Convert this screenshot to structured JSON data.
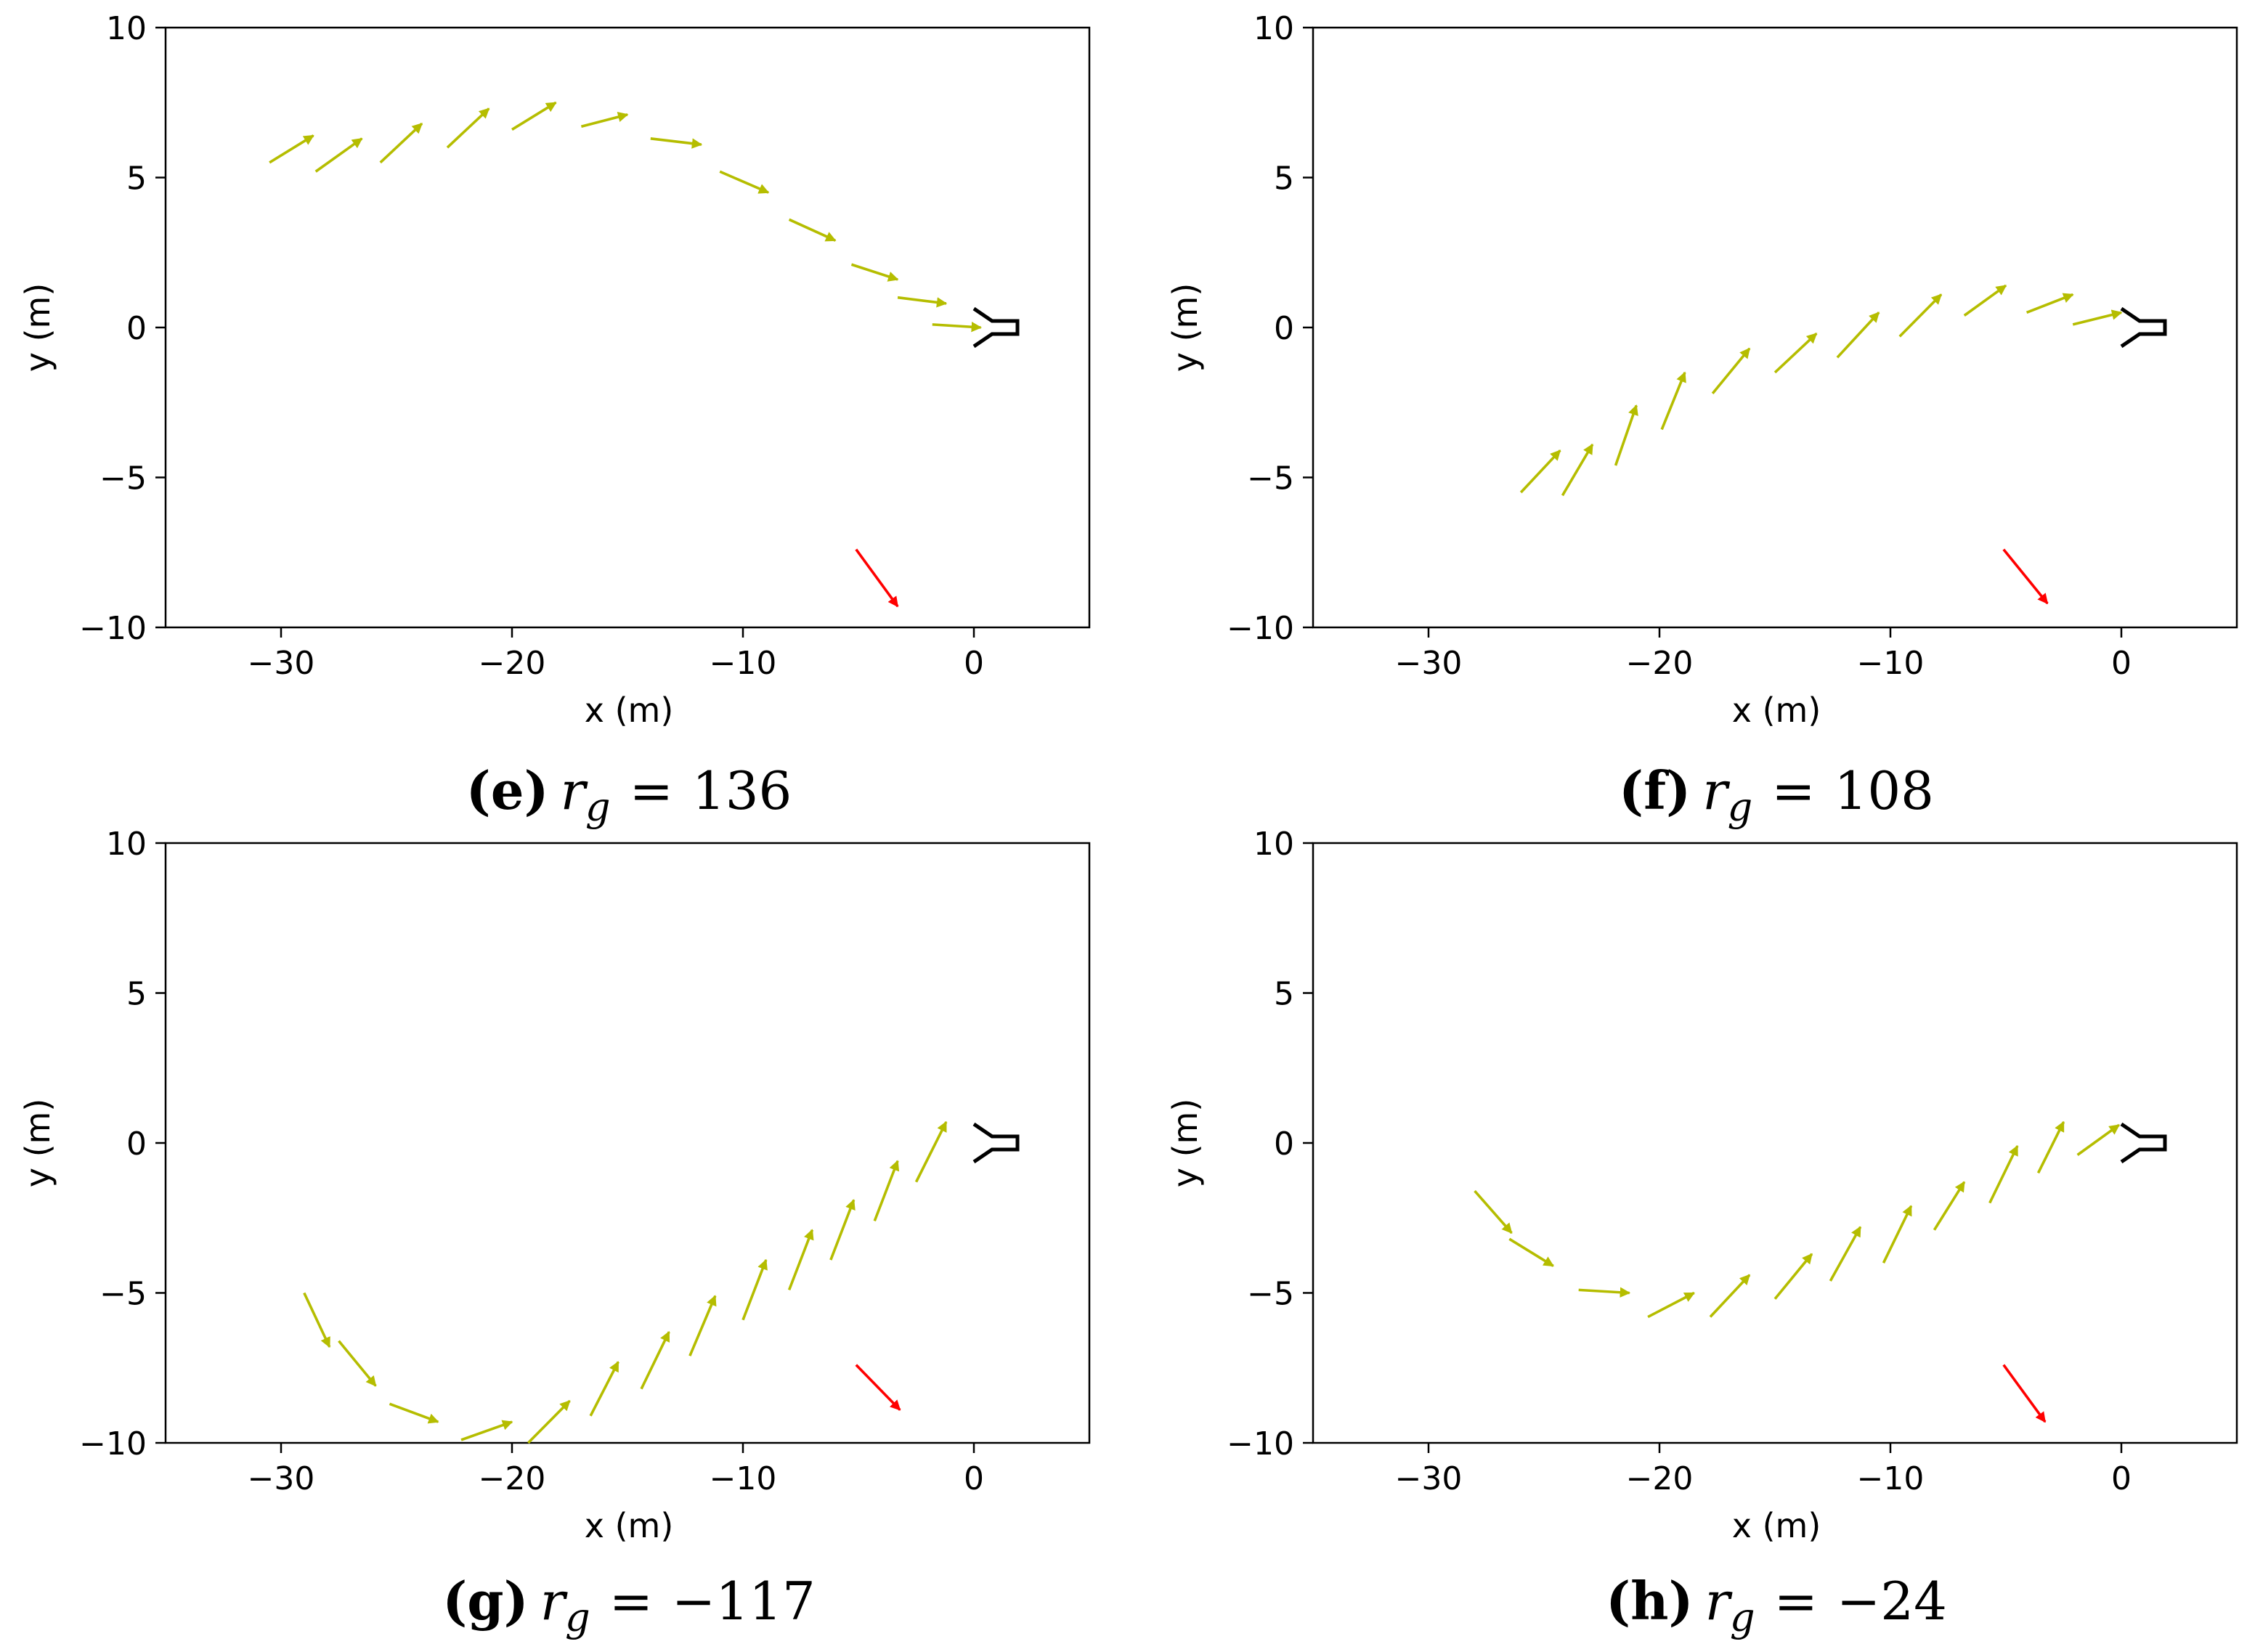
{
  "colors": {
    "trajectory": "#b5bd00",
    "target": "#ff0000",
    "vehicle": "#000000",
    "axes": "#000000",
    "background": "#ffffff"
  },
  "chart_data": [
    {
      "type": "quiver",
      "panel": "e",
      "caption": {
        "open": "(",
        "letter": "e",
        "close": ")",
        "var": "r",
        "sub": "g",
        "equals": "=",
        "value": "136"
      },
      "xlabel": "x (m)",
      "ylabel": "y (m)",
      "xlim": [
        -35,
        5
      ],
      "ylim": [
        -10,
        10
      ],
      "xticks": [
        -30,
        -20,
        -10,
        0
      ],
      "xticklabels": [
        "−30",
        "−20",
        "−10",
        "0"
      ],
      "yticks": [
        -10,
        -5,
        0,
        5,
        10
      ],
      "yticklabels": [
        "−10",
        "−5",
        "0",
        "5",
        "10"
      ],
      "trajectory_arrows": [
        {
          "x": -30.5,
          "y": 5.5,
          "dx": 1.9,
          "dy": 0.9
        },
        {
          "x": -28.5,
          "y": 5.2,
          "dx": 2.0,
          "dy": 1.1
        },
        {
          "x": -25.7,
          "y": 5.5,
          "dx": 1.8,
          "dy": 1.3
        },
        {
          "x": -22.8,
          "y": 6.0,
          "dx": 1.8,
          "dy": 1.3
        },
        {
          "x": -20.0,
          "y": 6.6,
          "dx": 1.9,
          "dy": 0.9
        },
        {
          "x": -17.0,
          "y": 6.7,
          "dx": 2.0,
          "dy": 0.4
        },
        {
          "x": -14.0,
          "y": 6.3,
          "dx": 2.2,
          "dy": -0.2
        },
        {
          "x": -11.0,
          "y": 5.2,
          "dx": 2.1,
          "dy": -0.7
        },
        {
          "x": -8.0,
          "y": 3.6,
          "dx": 2.0,
          "dy": -0.7
        },
        {
          "x": -5.3,
          "y": 2.1,
          "dx": 2.0,
          "dy": -0.5
        },
        {
          "x": -3.3,
          "y": 1.0,
          "dx": 2.1,
          "dy": -0.2
        },
        {
          "x": -1.8,
          "y": 0.1,
          "dx": 2.1,
          "dy": -0.1
        }
      ],
      "target_arrow": {
        "x": -5.1,
        "y": -7.4,
        "dx": 1.8,
        "dy": -1.9
      },
      "vehicle": {
        "x": 0,
        "y": 0
      }
    },
    {
      "type": "quiver",
      "panel": "f",
      "caption": {
        "open": "(",
        "letter": "f",
        "close": ")",
        "var": "r",
        "sub": "g",
        "equals": "=",
        "value": "108"
      },
      "xlabel": "x (m)",
      "ylabel": "y (m)",
      "xlim": [
        -35,
        5
      ],
      "ylim": [
        -10,
        10
      ],
      "xticks": [
        -30,
        -20,
        -10,
        0
      ],
      "xticklabels": [
        "−30",
        "−20",
        "−10",
        "0"
      ],
      "yticks": [
        -10,
        -5,
        0,
        5,
        10
      ],
      "yticklabels": [
        "−10",
        "−5",
        "0",
        "5",
        "10"
      ],
      "trajectory_arrows": [
        {
          "x": -26.0,
          "y": -5.5,
          "dx": 1.7,
          "dy": 1.4
        },
        {
          "x": -24.2,
          "y": -5.6,
          "dx": 1.3,
          "dy": 1.7
        },
        {
          "x": -21.9,
          "y": -4.6,
          "dx": 0.9,
          "dy": 2.0
        },
        {
          "x": -19.9,
          "y": -3.4,
          "dx": 1.0,
          "dy": 1.9
        },
        {
          "x": -17.7,
          "y": -2.2,
          "dx": 1.6,
          "dy": 1.5
        },
        {
          "x": -15.0,
          "y": -1.5,
          "dx": 1.8,
          "dy": 1.3
        },
        {
          "x": -12.3,
          "y": -1.0,
          "dx": 1.8,
          "dy": 1.5
        },
        {
          "x": -9.6,
          "y": -0.3,
          "dx": 1.8,
          "dy": 1.4
        },
        {
          "x": -6.8,
          "y": 0.4,
          "dx": 1.8,
          "dy": 1.0
        },
        {
          "x": -4.1,
          "y": 0.5,
          "dx": 2.0,
          "dy": 0.6
        },
        {
          "x": -2.1,
          "y": 0.1,
          "dx": 2.1,
          "dy": 0.4
        }
      ],
      "target_arrow": {
        "x": -5.1,
        "y": -7.4,
        "dx": 1.9,
        "dy": -1.8
      },
      "vehicle": {
        "x": 0,
        "y": 0
      }
    },
    {
      "type": "quiver",
      "panel": "g",
      "caption": {
        "open": "(",
        "letter": "g",
        "close": ")",
        "var": "r",
        "sub": "g",
        "equals": "=",
        "value": "−117"
      },
      "xlabel": "x (m)",
      "ylabel": "y (m)",
      "xlim": [
        -35,
        5
      ],
      "ylim": [
        -10,
        10
      ],
      "xticks": [
        -30,
        -20,
        -10,
        0
      ],
      "xticklabels": [
        "−30",
        "−20",
        "−10",
        "0"
      ],
      "yticks": [
        -10,
        -5,
        0,
        5,
        10
      ],
      "yticklabels": [
        "−10",
        "−5",
        "0",
        "5",
        "10"
      ],
      "trajectory_arrows": [
        {
          "x": -29.0,
          "y": -5.0,
          "dx": 1.1,
          "dy": -1.8
        },
        {
          "x": -27.5,
          "y": -6.6,
          "dx": 1.6,
          "dy": -1.5
        },
        {
          "x": -25.3,
          "y": -8.7,
          "dx": 2.1,
          "dy": -0.6
        },
        {
          "x": -22.2,
          "y": -9.9,
          "dx": 2.2,
          "dy": 0.6
        },
        {
          "x": -19.3,
          "y": -10.0,
          "dx": 1.8,
          "dy": 1.4
        },
        {
          "x": -16.6,
          "y": -9.1,
          "dx": 1.2,
          "dy": 1.8
        },
        {
          "x": -14.4,
          "y": -8.2,
          "dx": 1.2,
          "dy": 1.9
        },
        {
          "x": -12.3,
          "y": -7.1,
          "dx": 1.1,
          "dy": 2.0
        },
        {
          "x": -10.0,
          "y": -5.9,
          "dx": 1.0,
          "dy": 2.0
        },
        {
          "x": -8.0,
          "y": -4.9,
          "dx": 1.0,
          "dy": 2.0
        },
        {
          "x": -6.2,
          "y": -3.9,
          "dx": 1.0,
          "dy": 2.0
        },
        {
          "x": -4.3,
          "y": -2.6,
          "dx": 1.0,
          "dy": 2.0
        },
        {
          "x": -2.5,
          "y": -1.3,
          "dx": 1.3,
          "dy": 2.0
        }
      ],
      "target_arrow": {
        "x": -5.1,
        "y": -7.4,
        "dx": 1.9,
        "dy": -1.5
      },
      "vehicle": {
        "x": 0,
        "y": 0
      }
    },
    {
      "type": "quiver",
      "panel": "h",
      "caption": {
        "open": "(",
        "letter": "h",
        "close": ")",
        "var": "r",
        "sub": "g",
        "equals": "=",
        "value": "−24"
      },
      "xlabel": "x (m)",
      "ylabel": "y (m)",
      "xlim": [
        -35,
        5
      ],
      "ylim": [
        -10,
        10
      ],
      "xticks": [
        -30,
        -20,
        -10,
        0
      ],
      "xticklabels": [
        "−30",
        "−20",
        "−10",
        "0"
      ],
      "yticks": [
        -10,
        -5,
        0,
        5,
        10
      ],
      "yticklabels": [
        "−10",
        "−5",
        "0",
        "5",
        "10"
      ],
      "trajectory_arrows": [
        {
          "x": -28.0,
          "y": -1.6,
          "dx": 1.6,
          "dy": -1.4
        },
        {
          "x": -26.5,
          "y": -3.2,
          "dx": 1.9,
          "dy": -0.9
        },
        {
          "x": -23.5,
          "y": -4.9,
          "dx": 2.2,
          "dy": -0.1
        },
        {
          "x": -20.5,
          "y": -5.8,
          "dx": 2.0,
          "dy": 0.8
        },
        {
          "x": -17.8,
          "y": -5.8,
          "dx": 1.7,
          "dy": 1.4
        },
        {
          "x": -15.0,
          "y": -5.2,
          "dx": 1.6,
          "dy": 1.5
        },
        {
          "x": -12.6,
          "y": -4.6,
          "dx": 1.3,
          "dy": 1.8
        },
        {
          "x": -10.3,
          "y": -4.0,
          "dx": 1.2,
          "dy": 1.9
        },
        {
          "x": -8.1,
          "y": -2.9,
          "dx": 1.3,
          "dy": 1.6
        },
        {
          "x": -5.7,
          "y": -2.0,
          "dx": 1.2,
          "dy": 1.9
        },
        {
          "x": -3.6,
          "y": -1.0,
          "dx": 1.1,
          "dy": 1.7
        },
        {
          "x": -1.9,
          "y": -0.4,
          "dx": 1.8,
          "dy": 1.0
        }
      ],
      "target_arrow": {
        "x": -5.1,
        "y": -7.4,
        "dx": 1.8,
        "dy": -1.9
      },
      "vehicle": {
        "x": 0,
        "y": 0
      }
    }
  ]
}
